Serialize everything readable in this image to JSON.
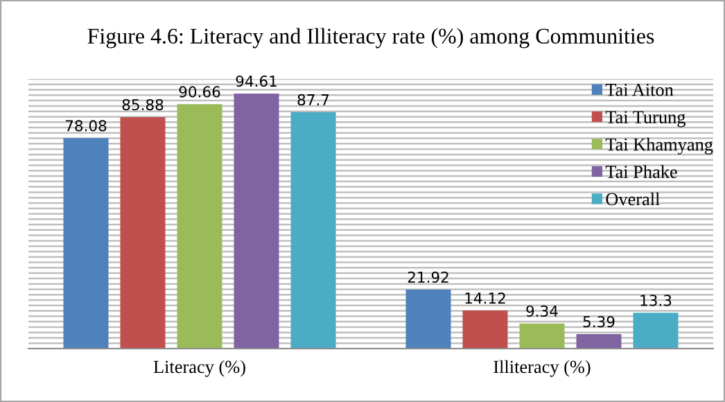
{
  "chart_data": {
    "type": "bar",
    "title": "Figure 4.6: Literacy and Illiteracy rate (%) among Communities",
    "categories": [
      "Literacy (%)",
      "Illiteracy (%)"
    ],
    "series": [
      {
        "name": "Tai Aiton",
        "color": "#4f81bd",
        "values": [
          78.08,
          21.92
        ]
      },
      {
        "name": "Tai Turung",
        "color": "#c0504d",
        "values": [
          85.88,
          14.12
        ]
      },
      {
        "name": "Tai Khamyang",
        "color": "#9bbb59",
        "values": [
          90.66,
          9.34
        ]
      },
      {
        "name": "Tai Phake",
        "color": "#8064a2",
        "values": [
          94.61,
          5.39
        ]
      },
      {
        "name": "Overall",
        "color": "#4bacc6",
        "values": [
          87.7,
          13.3
        ]
      }
    ],
    "ylim": [
      0,
      100
    ],
    "yticks": [
      {
        "value": 0,
        "label": null
      },
      {
        "value": 2,
        "label": null
      },
      {
        "value": 4,
        "label": null
      },
      {
        "value": 6,
        "label": null
      },
      {
        "value": 8,
        "label": null
      },
      {
        "value": 10,
        "label": null
      },
      {
        "value": 12,
        "label": null
      },
      {
        "value": 14,
        "label": null
      },
      {
        "value": 16,
        "label": null
      },
      {
        "value": 18,
        "label": null
      },
      {
        "value": 20,
        "label": null
      },
      {
        "value": 22,
        "label": null
      },
      {
        "value": 24,
        "label": null
      },
      {
        "value": 26,
        "label": null
      },
      {
        "value": 28,
        "label": null
      },
      {
        "value": 30,
        "label": null
      },
      {
        "value": 32,
        "label": null
      },
      {
        "value": 34,
        "label": null
      },
      {
        "value": 36,
        "label": null
      },
      {
        "value": 38,
        "label": null
      },
      {
        "value": 40,
        "label": null
      },
      {
        "value": 42,
        "label": null
      },
      {
        "value": 44,
        "label": null
      },
      {
        "value": 46,
        "label": null
      },
      {
        "value": 48,
        "label": null
      },
      {
        "value": 50,
        "label": null
      },
      {
        "value": 52,
        "label": null
      },
      {
        "value": 54,
        "label": null
      },
      {
        "value": 56,
        "label": null
      },
      {
        "value": 58,
        "label": null
      },
      {
        "value": 60,
        "label": null
      },
      {
        "value": 62,
        "label": null
      },
      {
        "value": 64,
        "label": null
      },
      {
        "value": 66,
        "label": null
      },
      {
        "value": 68,
        "label": null
      },
      {
        "value": 70,
        "label": null
      },
      {
        "value": 72,
        "label": null
      },
      {
        "value": 74,
        "label": null
      },
      {
        "value": 76,
        "label": null
      },
      {
        "value": 78,
        "label": null
      },
      {
        "value": 80,
        "label": null
      },
      {
        "value": 82,
        "label": null
      },
      {
        "value": 84,
        "label": null
      },
      {
        "value": 86,
        "label": null
      },
      {
        "value": 88,
        "label": null
      },
      {
        "value": 90,
        "label": null
      },
      {
        "value": 92,
        "label": null
      },
      {
        "value": 94,
        "label": null
      },
      {
        "value": 96,
        "label": null
      },
      {
        "value": 98,
        "label": null
      },
      {
        "value": 100,
        "label": null
      }
    ],
    "grid": "y",
    "legend": "top right",
    "data_labels": true,
    "tick_labels": "x"
  }
}
